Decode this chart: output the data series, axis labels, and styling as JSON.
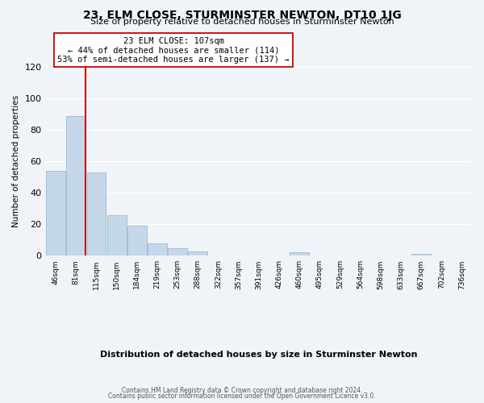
{
  "title": "23, ELM CLOSE, STURMINSTER NEWTON, DT10 1JG",
  "subtitle": "Size of property relative to detached houses in Sturminster Newton",
  "xlabel": "Distribution of detached houses by size in Sturminster Newton",
  "ylabel": "Number of detached properties",
  "bin_labels": [
    "46sqm",
    "81sqm",
    "115sqm",
    "150sqm",
    "184sqm",
    "219sqm",
    "253sqm",
    "288sqm",
    "322sqm",
    "357sqm",
    "391sqm",
    "426sqm",
    "460sqm",
    "495sqm",
    "529sqm",
    "564sqm",
    "598sqm",
    "633sqm",
    "667sqm",
    "702sqm",
    "736sqm"
  ],
  "bar_heights": [
    54,
    89,
    53,
    26,
    19,
    8,
    5,
    3,
    0,
    0,
    0,
    0,
    2,
    0,
    0,
    0,
    0,
    0,
    1,
    0,
    0
  ],
  "bar_color": "#c5d8ea",
  "bar_edge_color": "#9ab8d0",
  "vline_color": "#cc0000",
  "annotation_title": "23 ELM CLOSE: 107sqm",
  "annotation_line1": "← 44% of detached houses are smaller (114)",
  "annotation_line2": "53% of semi-detached houses are larger (137) →",
  "annotation_box_color": "#ffffff",
  "annotation_box_edge": "#cc0000",
  "ylim": [
    0,
    120
  ],
  "yticks": [
    0,
    20,
    40,
    60,
    80,
    100,
    120
  ],
  "footer1": "Contains HM Land Registry data © Crown copyright and database right 2024.",
  "footer2": "Contains public sector information licensed under the Open Government Licence v3.0.",
  "background_color": "#f0f4f8",
  "grid_color": "#ffffff"
}
